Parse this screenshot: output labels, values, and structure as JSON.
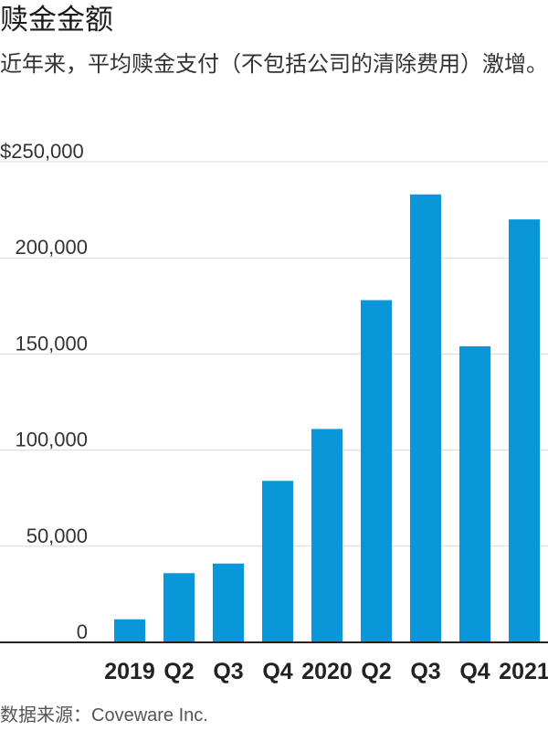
{
  "header": {
    "title": "赎金金额",
    "subtitle": "近年来，平均赎金支付（不包括公司的清除费用）激增。"
  },
  "footer": {
    "source_label": "数据来源：",
    "source_name": "Coveware Inc."
  },
  "colors": {
    "bar": "#0A97D9",
    "grid": "#d9d9d9",
    "axis": "#222222",
    "tick_text": "#333333"
  },
  "chart_data": {
    "type": "bar",
    "categories": [
      "2019",
      "Q2",
      "Q3",
      "Q4",
      "2020",
      "Q2",
      "Q3",
      "Q4",
      "2021"
    ],
    "values": [
      12000,
      36000,
      41000,
      84000,
      111000,
      178000,
      233000,
      154000,
      220000
    ],
    "ylim": [
      0,
      250000
    ],
    "yticks": [
      0,
      50000,
      100000,
      150000,
      200000,
      250000
    ],
    "ytick_labels": [
      "0",
      "50,000",
      "100,000",
      "150,000",
      "200,000",
      "$250,000"
    ],
    "grid": true,
    "title": "",
    "xlabel": "",
    "ylabel": ""
  }
}
